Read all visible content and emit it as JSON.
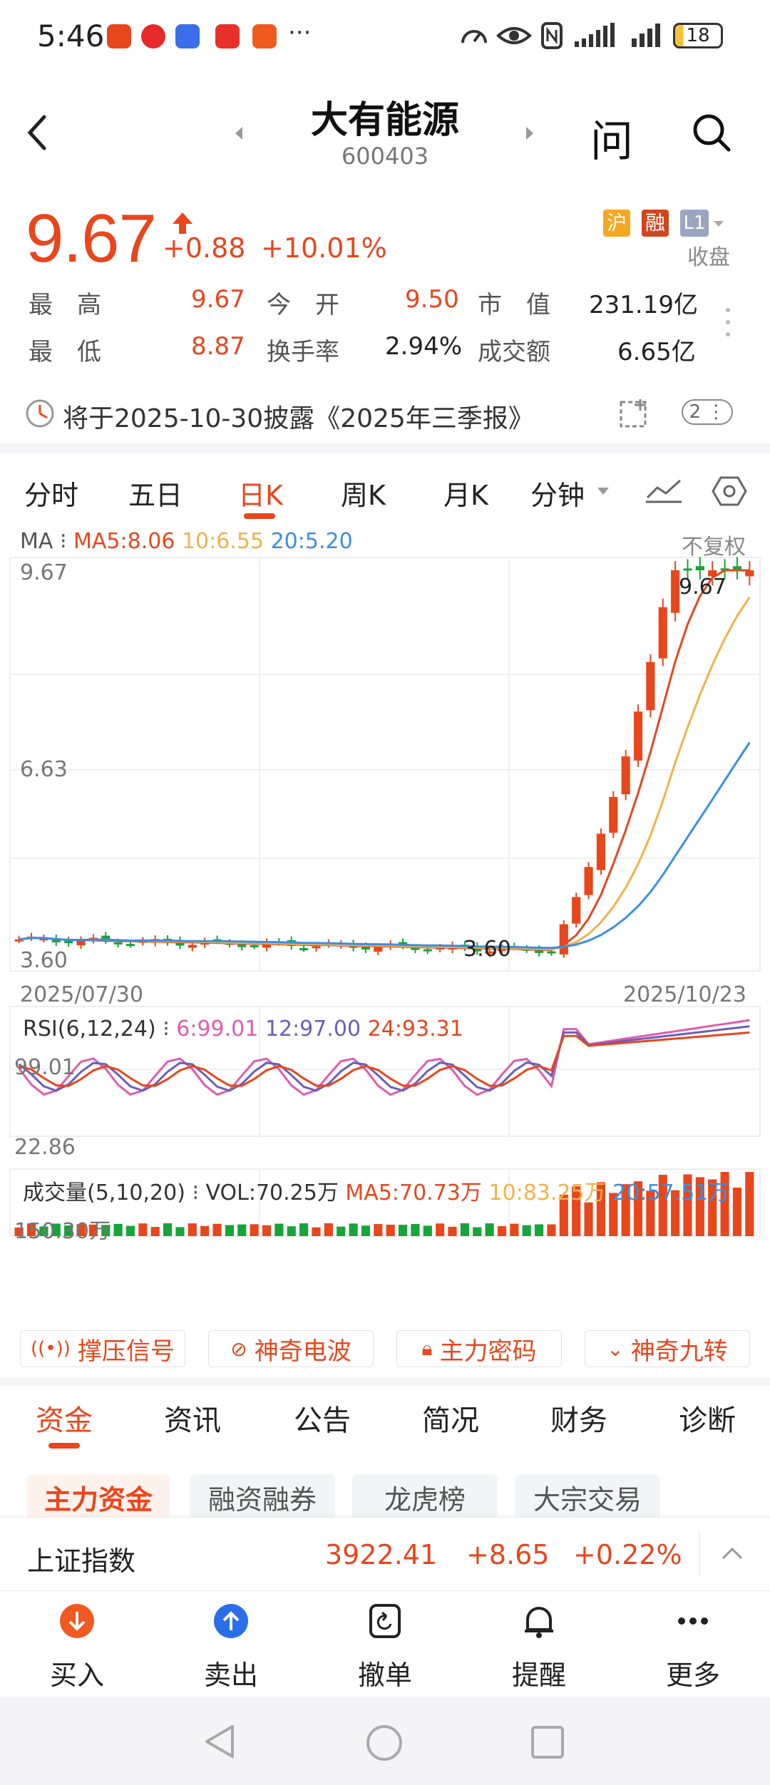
{
  "status_bar": {
    "time": "5:46",
    "battery": "18",
    "icons": [
      "alert-app-icon",
      "weibo-app-icon",
      "tie-app-icon",
      "book-app-icon",
      "pingan-bank-app-icon",
      "more-dots",
      "speed-icon",
      "eye-icon",
      "nfc-icon",
      "signal-icon",
      "signal-icon",
      "battery-icon"
    ]
  },
  "header": {
    "name": "大有能源",
    "code": "600403",
    "ask_label": "问"
  },
  "quote": {
    "price": "9.67",
    "change": "+0.88",
    "change_pct": "+10.01%",
    "badges": {
      "sh": "沪",
      "margin": "融",
      "level": "L1"
    },
    "status": "收盘",
    "high_label": "最　高",
    "high": "9.67",
    "open_label": "今　开",
    "open": "9.50",
    "mktcap_label": "市　值",
    "mktcap": "231.19亿",
    "low_label": "最　低",
    "low": "8.87",
    "turnover_label": "换手率",
    "turnover": "2.94%",
    "amount_label": "成交额",
    "amount": "6.65亿"
  },
  "notice": {
    "text": "将于2025-10-30披露《2025年三季报》",
    "count": "2"
  },
  "chart_tabs": {
    "items": [
      "分时",
      "五日",
      "日K",
      "周K",
      "月K",
      "分钟"
    ],
    "active": "日K"
  },
  "kline": {
    "ma_label": "MA",
    "ma5": "MA5:8.06",
    "ma10": "10:6.55",
    "ma20": "20:5.20",
    "adjust": "不复权",
    "y_top": "9.67",
    "y_mid": "6.63",
    "y_bottom": "3.60",
    "max_label": "9.67",
    "min_label": "3.60",
    "date_start": "2025/07/30",
    "date_end": "2025/10/23",
    "colors": {
      "up": "#e8461c",
      "down": "#17a43a",
      "ma5": "#e8461c",
      "ma10": "#f0b24a",
      "ma20": "#3a8ee6"
    }
  },
  "rsi": {
    "label": "RSI(6,12,24)",
    "r6": "6:99.01",
    "r12": "12:97.00",
    "r24": "24:93.31",
    "y_top": "99.01",
    "y_bottom": "22.86",
    "colors": {
      "r6": "#e05bb0",
      "r12": "#6a5fb8",
      "r24": "#e8461c"
    }
  },
  "volume": {
    "label": "成交量(5,10,20)",
    "vol": "VOL:70.25万",
    "ma5": "MA5:70.73万",
    "ma10": "10:83.25万",
    "ma20": "20:57.51万",
    "y_top": "150.30万"
  },
  "tool_buttons": [
    "撑压信号",
    "神奇电波",
    "主力密码",
    "神奇九转"
  ],
  "info_tabs": {
    "items": [
      "资金",
      "资讯",
      "公告",
      "简况",
      "财务",
      "诊断"
    ],
    "active": "资金"
  },
  "sub_tabs": {
    "items": [
      "主力资金",
      "融资融券",
      "龙虎榜",
      "大宗交易"
    ],
    "active": "主力资金"
  },
  "index_bar": {
    "name": "上证指数",
    "value": "3922.41",
    "change": "+8.65",
    "pct": "+0.22%"
  },
  "bottom_bar": {
    "buy": "买入",
    "sell": "卖出",
    "cancel": "撤单",
    "alert": "提醒",
    "more": "更多"
  }
}
